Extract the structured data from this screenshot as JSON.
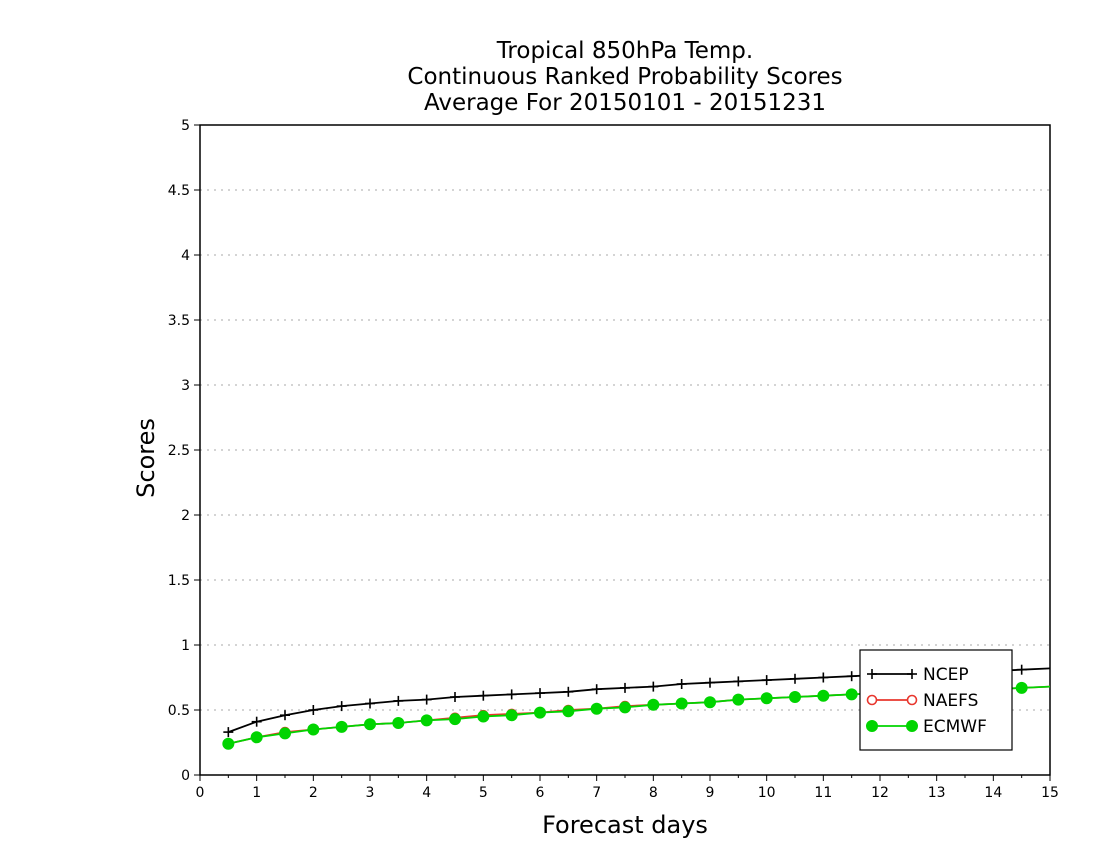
{
  "chart_data": {
    "type": "line",
    "title_lines": [
      "Tropical 850hPa Temp.",
      "Continuous Ranked Probability Scores",
      "Average For 20150101 - 20151231"
    ],
    "xlabel": "Forecast days",
    "ylabel": "Scores",
    "xlim": [
      0,
      15
    ],
    "ylim": [
      0,
      5
    ],
    "x_ticks": [
      "0",
      "1",
      "2",
      "3",
      "4",
      "5",
      "6",
      "7",
      "8",
      "9",
      "10",
      "11",
      "12",
      "13",
      "14",
      "15"
    ],
    "y_ticks": [
      "0",
      "0.5",
      "1",
      "1.5",
      "2",
      "2.5",
      "3",
      "3.5",
      "4",
      "4.5",
      "5"
    ],
    "grid": "horizontal dotted",
    "legend_position": "bottom-right",
    "x": [
      0.5,
      1,
      1.5,
      2,
      2.5,
      3,
      3.5,
      4,
      4.5,
      5,
      5.5,
      6,
      6.5,
      7,
      7.5,
      8,
      8.5,
      9,
      9.5,
      10,
      10.5,
      11,
      11.5,
      12,
      12.5,
      13,
      13.5,
      14,
      14.5,
      15
    ],
    "series": [
      {
        "name": "NCEP",
        "color": "#000000",
        "marker": "plus",
        "values": [
          0.33,
          0.41,
          0.46,
          0.5,
          0.53,
          0.55,
          0.57,
          0.58,
          0.6,
          0.61,
          0.62,
          0.63,
          0.64,
          0.66,
          0.67,
          0.68,
          0.7,
          0.71,
          0.72,
          0.73,
          0.74,
          0.75,
          0.76,
          0.77,
          0.78,
          0.78,
          0.79,
          0.8,
          0.81,
          0.82
        ]
      },
      {
        "name": "NAEFS",
        "color": "#e8372e",
        "marker": "open-circle",
        "values": [
          0.24,
          0.29,
          0.33,
          0.35,
          0.37,
          0.39,
          0.4,
          0.42,
          0.44,
          0.46,
          0.47,
          0.48,
          0.5,
          0.51,
          0.53,
          0.54,
          0.55,
          0.56,
          0.58,
          0.59,
          0.6,
          0.61,
          0.62,
          0.63,
          0.64,
          0.65,
          0.66,
          0.66,
          0.67,
          0.68
        ]
      },
      {
        "name": "ECMWF",
        "color": "#00d400",
        "marker": "filled-circle",
        "values": [
          0.24,
          0.29,
          0.32,
          0.35,
          0.37,
          0.39,
          0.4,
          0.42,
          0.43,
          0.45,
          0.46,
          0.48,
          0.49,
          0.51,
          0.52,
          0.54,
          0.55,
          0.56,
          0.58,
          0.59,
          0.6,
          0.61,
          0.62,
          0.63,
          0.64,
          0.65,
          0.66,
          0.66,
          0.67,
          0.68
        ]
      }
    ]
  }
}
